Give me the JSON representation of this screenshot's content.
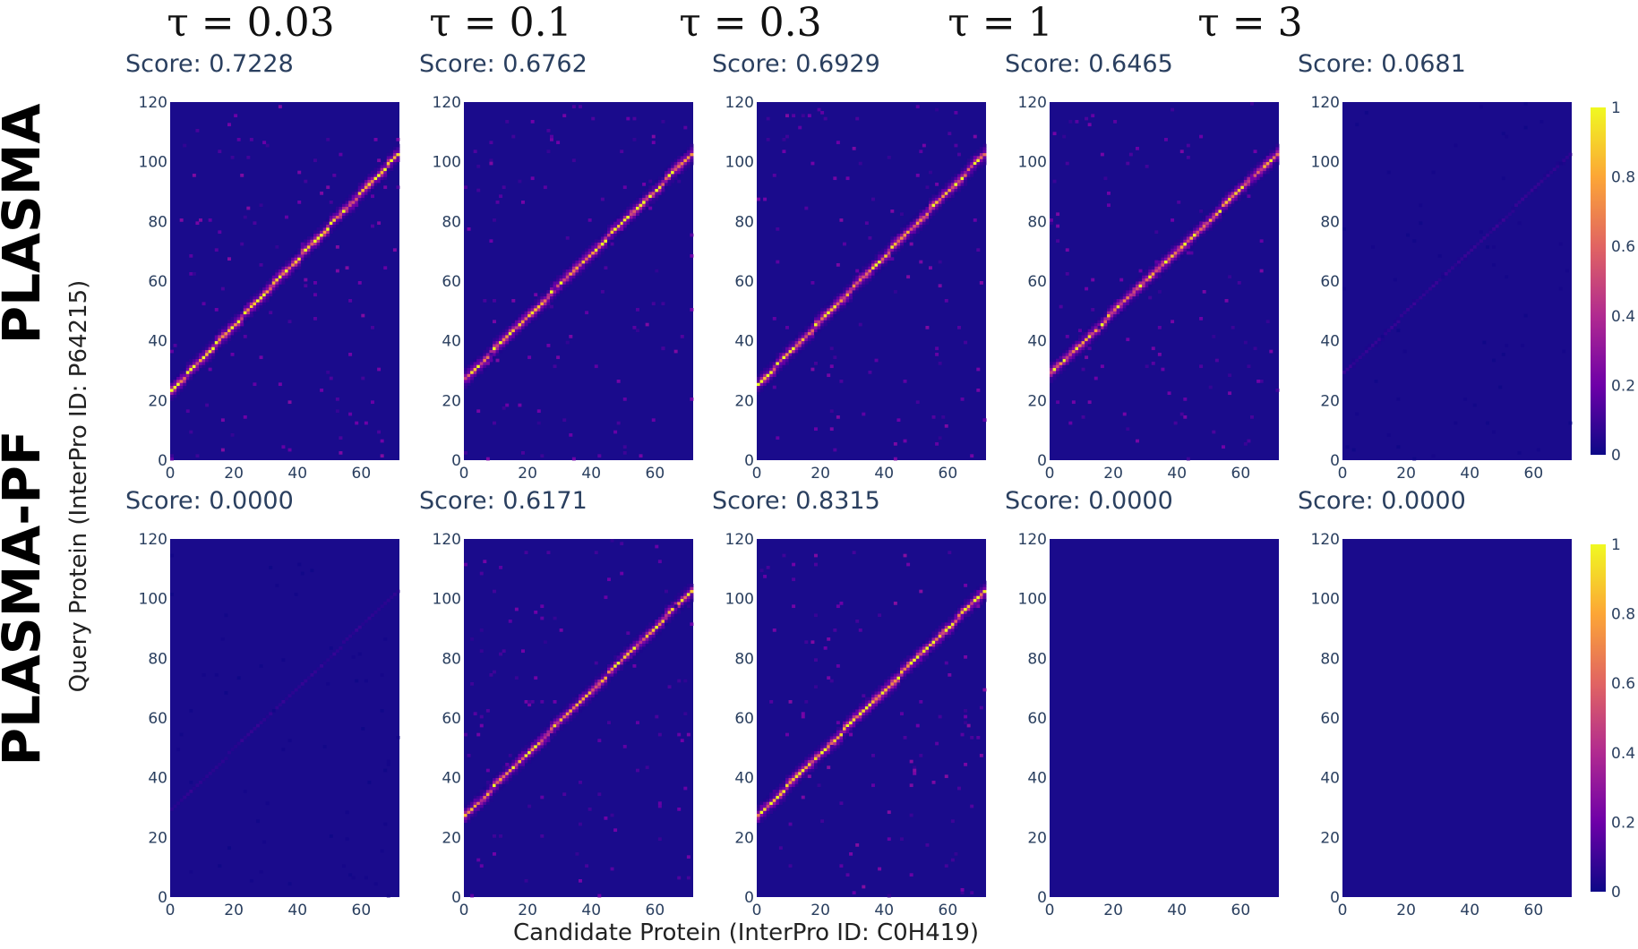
{
  "figure": {
    "columns": [
      "τ = 0.03",
      "τ = 0.1",
      "τ = 0.3",
      "τ = 1",
      "τ = 3"
    ],
    "rows": [
      "PLASMA",
      "PLASMA-PF"
    ],
    "ylabel": "Query Protein (InterPro ID: P64215)",
    "xlabel": "Candidate Protein (InterPro ID: C0H419)",
    "colormap": "plasma",
    "background_color": "#1a0b8c",
    "colorbar_ticks": [
      "1",
      "0.8",
      "0.6",
      "0.4",
      "0.2",
      "0"
    ]
  },
  "chart_data": [
    {
      "type": "heatmap",
      "row": "PLASMA",
      "column": "τ = 0.03",
      "title": "Score: 0.7228",
      "score": 0.7228,
      "xlim": [
        0,
        72
      ],
      "ylim": [
        0,
        120
      ],
      "xticks": [
        "0",
        "20",
        "40",
        "60"
      ],
      "yticks": [
        "0",
        "20",
        "40",
        "60",
        "80",
        "100",
        "120"
      ],
      "main_diagonal": {
        "x": [
          0,
          72
        ],
        "y": [
          23,
          103
        ],
        "peak": 0.95
      }
    },
    {
      "type": "heatmap",
      "row": "PLASMA",
      "column": "τ = 0.1",
      "title": "Score: 0.6762",
      "score": 0.6762,
      "xlim": [
        0,
        72
      ],
      "ylim": [
        0,
        120
      ],
      "xticks": [
        "0",
        "20",
        "40",
        "60"
      ],
      "yticks": [
        "0",
        "20",
        "40",
        "60",
        "80",
        "100",
        "120"
      ],
      "main_diagonal": {
        "x": [
          0,
          72
        ],
        "y": [
          27,
          103
        ],
        "peak": 0.9
      }
    },
    {
      "type": "heatmap",
      "row": "PLASMA",
      "column": "τ = 0.3",
      "title": "Score: 0.6929",
      "score": 0.6929,
      "xlim": [
        0,
        72
      ],
      "ylim": [
        0,
        120
      ],
      "xticks": [
        "0",
        "20",
        "40",
        "60"
      ],
      "yticks": [
        "0",
        "20",
        "40",
        "60",
        "80",
        "100",
        "120"
      ],
      "main_diagonal": {
        "x": [
          0,
          72
        ],
        "y": [
          25,
          103
        ],
        "peak": 0.9
      }
    },
    {
      "type": "heatmap",
      "row": "PLASMA",
      "column": "τ = 1",
      "title": "Score: 0.6465",
      "score": 0.6465,
      "xlim": [
        0,
        72
      ],
      "ylim": [
        0,
        120
      ],
      "xticks": [
        "0",
        "20",
        "40",
        "60"
      ],
      "yticks": [
        "0",
        "20",
        "40",
        "60",
        "80",
        "100",
        "120"
      ],
      "main_diagonal": {
        "x": [
          0,
          72
        ],
        "y": [
          29,
          103
        ],
        "peak": 0.85
      }
    },
    {
      "type": "heatmap",
      "row": "PLASMA",
      "column": "τ = 3",
      "title": "Score: 0.0681",
      "score": 0.0681,
      "xlim": [
        0,
        72
      ],
      "ylim": [
        0,
        120
      ],
      "xticks": [
        "0",
        "20",
        "40",
        "60"
      ],
      "yticks": [
        "0",
        "20",
        "40",
        "60",
        "80",
        "100",
        "120"
      ],
      "main_diagonal": {
        "x": [
          0,
          72
        ],
        "y": [
          29,
          103
        ],
        "peak": 0.08
      }
    },
    {
      "type": "heatmap",
      "row": "PLASMA-PF",
      "column": "τ = 0.03",
      "title": "Score: 0.0000",
      "score": 0.0,
      "xlim": [
        0,
        72
      ],
      "ylim": [
        0,
        120
      ],
      "xticks": [
        "0",
        "20",
        "40",
        "60"
      ],
      "yticks": [
        "0",
        "20",
        "40",
        "60",
        "80",
        "100",
        "120"
      ],
      "main_diagonal": {
        "x": [
          0,
          72
        ],
        "y": [
          29,
          103
        ],
        "peak": 0.07
      }
    },
    {
      "type": "heatmap",
      "row": "PLASMA-PF",
      "column": "τ = 0.1",
      "title": "Score: 0.6171",
      "score": 0.6171,
      "xlim": [
        0,
        72
      ],
      "ylim": [
        0,
        120
      ],
      "xticks": [
        "0",
        "20",
        "40",
        "60"
      ],
      "yticks": [
        "0",
        "20",
        "40",
        "60",
        "80",
        "100",
        "120"
      ],
      "main_diagonal": {
        "x": [
          0,
          72
        ],
        "y": [
          27,
          103
        ],
        "peak": 0.8
      }
    },
    {
      "type": "heatmap",
      "row": "PLASMA-PF",
      "column": "τ = 0.3",
      "title": "Score: 0.8315",
      "score": 0.8315,
      "xlim": [
        0,
        72
      ],
      "ylim": [
        0,
        120
      ],
      "xticks": [
        "0",
        "20",
        "40",
        "60"
      ],
      "yticks": [
        "0",
        "20",
        "40",
        "60",
        "80",
        "100",
        "120"
      ],
      "main_diagonal": {
        "x": [
          0,
          72
        ],
        "y": [
          27,
          103
        ],
        "peak": 0.97
      }
    },
    {
      "type": "heatmap",
      "row": "PLASMA-PF",
      "column": "τ = 1",
      "title": "Score: 0.0000",
      "score": 0.0,
      "xlim": [
        0,
        72
      ],
      "ylim": [
        0,
        120
      ],
      "xticks": [
        "0",
        "20",
        "40",
        "60"
      ],
      "yticks": [
        "0",
        "20",
        "40",
        "60",
        "80",
        "100",
        "120"
      ],
      "main_diagonal": null
    },
    {
      "type": "heatmap",
      "row": "PLASMA-PF",
      "column": "τ = 3",
      "title": "Score: 0.0000",
      "score": 0.0,
      "xlim": [
        0,
        72
      ],
      "ylim": [
        0,
        120
      ],
      "xticks": [
        "0",
        "20",
        "40",
        "60"
      ],
      "yticks": [
        "0",
        "20",
        "40",
        "60",
        "80",
        "100",
        "120"
      ],
      "main_diagonal": null
    }
  ]
}
